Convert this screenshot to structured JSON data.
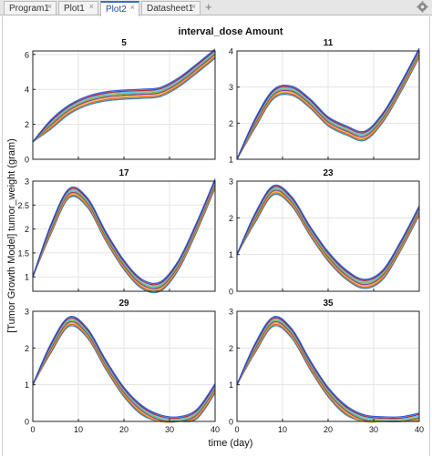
{
  "tabs": [
    {
      "label": "Program1",
      "active": false,
      "closable": true
    },
    {
      "label": "Plot1",
      "active": false,
      "closable": true
    },
    {
      "label": "Plot2",
      "active": true,
      "closable": true
    },
    {
      "label": "Datasheet1",
      "active": false,
      "closable": true
    }
  ],
  "close_glyph": "×",
  "add_tab_glyph": "+",
  "settings_icon": "gear-icon",
  "figure": {
    "title": "interval_dose Amount",
    "ylabel": "[Tumor Growth Model] tumor_weight (gram)",
    "xlabel": "time (day)"
  },
  "chart_data": [
    {
      "type": "line",
      "title": "5",
      "x": [
        0,
        4,
        8,
        12,
        16,
        20,
        24,
        28,
        32,
        36,
        40
      ],
      "ylim": [
        0,
        6.2
      ],
      "yticks": [
        0,
        2,
        4,
        6
      ],
      "xlim": [
        0,
        40
      ],
      "xticks": [
        0,
        10,
        20,
        30,
        40
      ],
      "grid": true,
      "series": [
        {
          "values": [
            1.0,
            2.0,
            2.85,
            3.35,
            3.6,
            3.7,
            3.75,
            3.85,
            4.4,
            5.2,
            6.05
          ]
        }
      ]
    },
    {
      "type": "line",
      "title": "11",
      "x": [
        0,
        4,
        8,
        12,
        16,
        20,
        24,
        28,
        32,
        36,
        40
      ],
      "ylim": [
        1,
        4
      ],
      "yticks": [
        1,
        2,
        3,
        4
      ],
      "xlim": [
        0,
        40
      ],
      "xticks": [
        0,
        10,
        20,
        30,
        40
      ],
      "grid": true,
      "series": [
        {
          "values": [
            1.0,
            2.0,
            2.8,
            2.9,
            2.55,
            2.05,
            1.8,
            1.65,
            2.15,
            3.0,
            3.95
          ]
        }
      ]
    },
    {
      "type": "line",
      "title": "17",
      "x": [
        0,
        4,
        8,
        12,
        16,
        20,
        24,
        28,
        32,
        36,
        40
      ],
      "ylim": [
        0.7,
        3
      ],
      "yticks": [
        1,
        1.5,
        2,
        2.5,
        3
      ],
      "xlim": [
        0,
        40
      ],
      "xticks": [
        0,
        10,
        20,
        30,
        40
      ],
      "grid": true,
      "series": [
        {
          "values": [
            1.0,
            2.0,
            2.75,
            2.55,
            1.85,
            1.25,
            0.85,
            0.8,
            1.25,
            2.05,
            2.95
          ]
        }
      ]
    },
    {
      "type": "line",
      "title": "23",
      "x": [
        0,
        4,
        8,
        12,
        16,
        20,
        24,
        28,
        32,
        36,
        40
      ],
      "ylim": [
        0,
        3
      ],
      "yticks": [
        0,
        1,
        2,
        3
      ],
      "xlim": [
        0,
        40
      ],
      "xticks": [
        0,
        10,
        20,
        30,
        40
      ],
      "grid": true,
      "series": [
        {
          "values": [
            1.0,
            2.0,
            2.75,
            2.45,
            1.65,
            0.95,
            0.45,
            0.2,
            0.45,
            1.25,
            2.2
          ]
        }
      ]
    },
    {
      "type": "line",
      "title": "29",
      "x": [
        0,
        4,
        8,
        12,
        16,
        20,
        24,
        28,
        32,
        36,
        40
      ],
      "ylim": [
        0,
        3
      ],
      "yticks": [
        0,
        1,
        2,
        3
      ],
      "xlim": [
        0,
        40
      ],
      "xticks": [
        0,
        10,
        20,
        30,
        40
      ],
      "grid": true,
      "series": [
        {
          "values": [
            1.0,
            2.0,
            2.72,
            2.4,
            1.55,
            0.8,
            0.3,
            0.05,
            0.0,
            0.2,
            0.9
          ]
        }
      ]
    },
    {
      "type": "line",
      "title": "35",
      "x": [
        0,
        4,
        8,
        12,
        16,
        20,
        24,
        28,
        32,
        36,
        40
      ],
      "ylim": [
        0,
        3
      ],
      "yticks": [
        0,
        1,
        2,
        3
      ],
      "xlim": [
        0,
        40
      ],
      "xticks": [
        0,
        10,
        20,
        30,
        40
      ],
      "grid": true,
      "series": [
        {
          "values": [
            1.0,
            2.0,
            2.72,
            2.4,
            1.55,
            0.8,
            0.3,
            0.05,
            0.0,
            0.0,
            0.1
          ]
        }
      ]
    }
  ],
  "colors": {
    "curves": [
      "#1f77b4",
      "#d95319",
      "#edb120",
      "#7e2f8e",
      "#77ac30",
      "#4dbeee",
      "#a2142f",
      "#1a4fd6",
      "#e377c2",
      "#2ca02c"
    ],
    "tab_active_text": "#1f4fa3",
    "tab_active_accent": "#3a6fc4"
  }
}
